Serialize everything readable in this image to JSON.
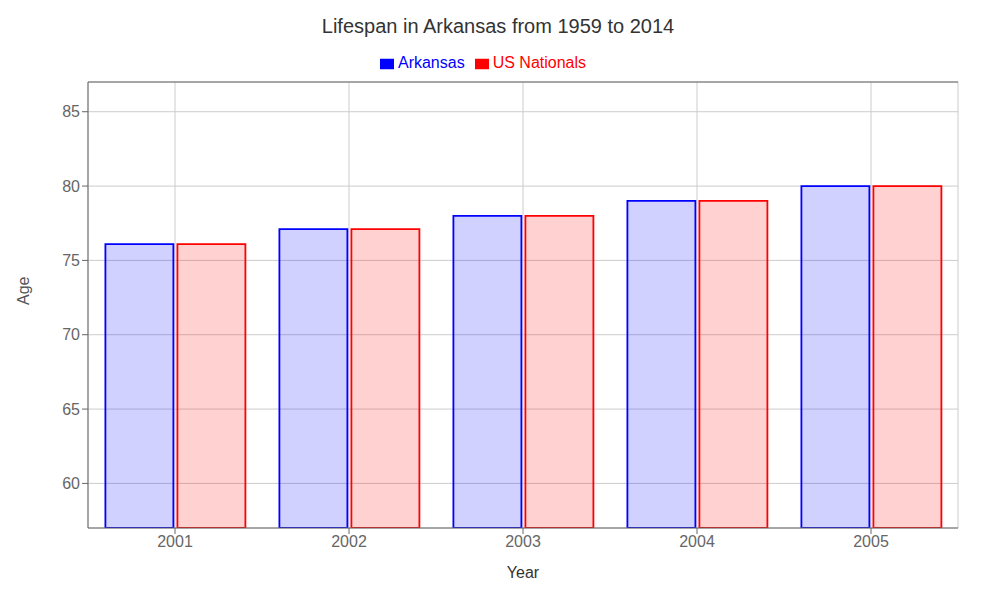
{
  "chart_data": {
    "type": "bar",
    "title": "Lifespan in Arkansas from 1959 to 2014",
    "xlabel": "Year",
    "ylabel": "Age",
    "categories": [
      "2001",
      "2002",
      "2003",
      "2004",
      "2005"
    ],
    "series": [
      {
        "name": "Arkansas",
        "color": "#0000ff",
        "values": [
          76.1,
          77.1,
          78.0,
          79.0,
          80.0
        ]
      },
      {
        "name": "US Nationals",
        "color": "#ff0000",
        "values": [
          76.1,
          77.1,
          78.0,
          79.0,
          80.0
        ]
      }
    ],
    "ylim": [
      57,
      87
    ],
    "yticks": [
      60,
      65,
      70,
      75,
      80,
      85
    ],
    "grid": true,
    "legend": "top"
  }
}
